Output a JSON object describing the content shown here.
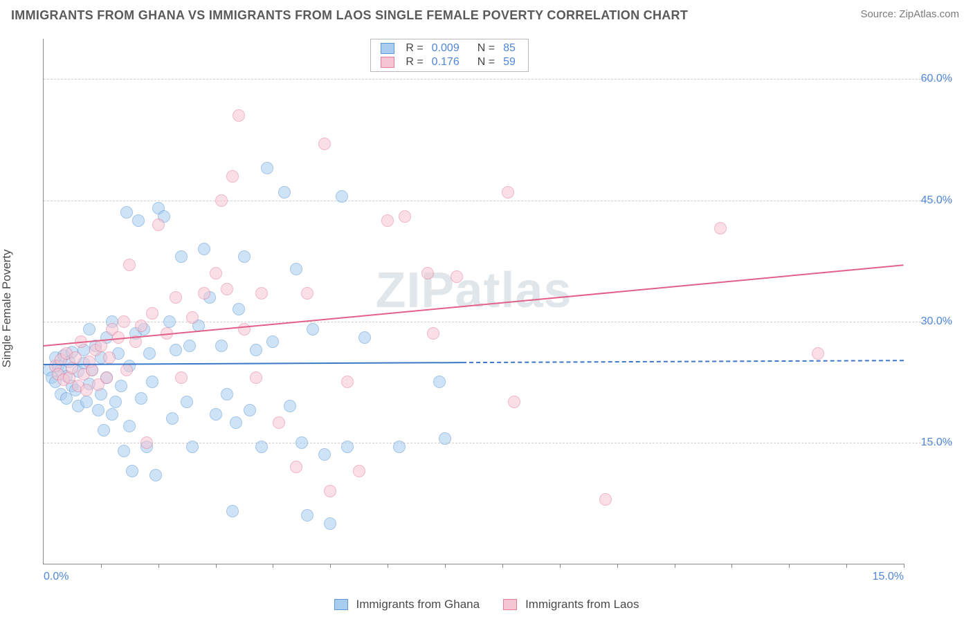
{
  "title": "IMMIGRANTS FROM GHANA VS IMMIGRANTS FROM LAOS SINGLE FEMALE POVERTY CORRELATION CHART",
  "source": "Source: ZipAtlas.com",
  "watermark": "ZIPatlas",
  "ylabel": "Single Female Poverty",
  "chart": {
    "type": "scatter",
    "xlim": [
      0,
      15
    ],
    "ylim": [
      0,
      65
    ],
    "xticks": [
      0.0,
      15.0
    ],
    "xtick_labels": [
      "0.0%",
      "15.0%"
    ],
    "yticks": [
      15.0,
      30.0,
      45.0,
      60.0
    ],
    "ytick_labels": [
      "15.0%",
      "30.0%",
      "45.0%",
      "60.0%"
    ],
    "grid_color": "#cfcfcf",
    "axis_color": "#888888",
    "tick_label_color": "#4f86d8",
    "background_color": "#ffffff",
    "point_radius": 9,
    "point_opacity": 0.55,
    "trend_line_width": 2.4,
    "x_minor_tick_count": 15
  },
  "series": [
    {
      "name": "Immigrants from Ghana",
      "fill": "#a9cdf0",
      "stroke": "#5a97d6",
      "line_color": "#3b78c7",
      "r_label": "R =",
      "r_value": "0.009",
      "n_label": "N =",
      "n_value": "85",
      "trend": {
        "y_at_x0": 24.7,
        "y_at_xmax": 25.2,
        "solid_until_x": 7.3
      },
      "points": [
        [
          0.1,
          24.0
        ],
        [
          0.15,
          23.0
        ],
        [
          0.2,
          25.5
        ],
        [
          0.2,
          22.5
        ],
        [
          0.25,
          24.5
        ],
        [
          0.3,
          24.0
        ],
        [
          0.3,
          21.0
        ],
        [
          0.35,
          25.8
        ],
        [
          0.4,
          23.2
        ],
        [
          0.4,
          20.5
        ],
        [
          0.45,
          25.0
        ],
        [
          0.5,
          22.0
        ],
        [
          0.5,
          26.2
        ],
        [
          0.55,
          21.5
        ],
        [
          0.6,
          23.8
        ],
        [
          0.6,
          19.5
        ],
        [
          0.7,
          24.8
        ],
        [
          0.7,
          26.5
        ],
        [
          0.75,
          20.0
        ],
        [
          0.8,
          29.0
        ],
        [
          0.8,
          22.3
        ],
        [
          0.85,
          24.0
        ],
        [
          0.9,
          27.0
        ],
        [
          0.95,
          19.0
        ],
        [
          1.0,
          25.5
        ],
        [
          1.0,
          21.0
        ],
        [
          1.05,
          16.5
        ],
        [
          1.1,
          28.0
        ],
        [
          1.1,
          23.0
        ],
        [
          1.2,
          18.5
        ],
        [
          1.2,
          30.0
        ],
        [
          1.25,
          20.0
        ],
        [
          1.3,
          26.0
        ],
        [
          1.35,
          22.0
        ],
        [
          1.4,
          14.0
        ],
        [
          1.45,
          43.5
        ],
        [
          1.5,
          24.5
        ],
        [
          1.5,
          17.0
        ],
        [
          1.55,
          11.5
        ],
        [
          1.6,
          28.5
        ],
        [
          1.65,
          42.5
        ],
        [
          1.7,
          20.5
        ],
        [
          1.75,
          29.0
        ],
        [
          1.8,
          14.5
        ],
        [
          1.85,
          26.0
        ],
        [
          1.9,
          22.5
        ],
        [
          1.95,
          11.0
        ],
        [
          2.0,
          44.0
        ],
        [
          2.1,
          43.0
        ],
        [
          2.2,
          30.0
        ],
        [
          2.25,
          18.0
        ],
        [
          2.3,
          26.5
        ],
        [
          2.4,
          38.0
        ],
        [
          2.5,
          20.0
        ],
        [
          2.55,
          27.0
        ],
        [
          2.6,
          14.5
        ],
        [
          2.7,
          29.5
        ],
        [
          2.8,
          39.0
        ],
        [
          2.9,
          33.0
        ],
        [
          3.0,
          18.5
        ],
        [
          3.1,
          27.0
        ],
        [
          3.2,
          21.0
        ],
        [
          3.3,
          6.5
        ],
        [
          3.35,
          17.5
        ],
        [
          3.4,
          31.5
        ],
        [
          3.5,
          38.0
        ],
        [
          3.6,
          19.0
        ],
        [
          3.7,
          26.5
        ],
        [
          3.8,
          14.5
        ],
        [
          3.9,
          49.0
        ],
        [
          4.0,
          27.5
        ],
        [
          4.2,
          46.0
        ],
        [
          4.3,
          19.5
        ],
        [
          4.4,
          36.5
        ],
        [
          4.5,
          15.0
        ],
        [
          4.6,
          6.0
        ],
        [
          4.7,
          29.0
        ],
        [
          4.9,
          13.5
        ],
        [
          5.0,
          5.0
        ],
        [
          5.2,
          45.5
        ],
        [
          5.3,
          14.5
        ],
        [
          5.6,
          28.0
        ],
        [
          6.2,
          14.5
        ],
        [
          6.9,
          22.5
        ],
        [
          7.0,
          15.5
        ]
      ]
    },
    {
      "name": "Immigrants from Laos",
      "fill": "#f6c6d3",
      "stroke": "#e77c9a",
      "line_color": "#e26088",
      "r_label": "R =",
      "r_value": "0.176",
      "n_label": "N =",
      "n_value": "59",
      "trend": {
        "y_at_x0": 27.0,
        "y_at_xmax": 37.0,
        "solid_until_x": 15
      },
      "points": [
        [
          0.2,
          24.5
        ],
        [
          0.25,
          23.5
        ],
        [
          0.3,
          25.3
        ],
        [
          0.35,
          22.8
        ],
        [
          0.4,
          26.0
        ],
        [
          0.45,
          23.0
        ],
        [
          0.5,
          24.2
        ],
        [
          0.55,
          25.5
        ],
        [
          0.6,
          22.0
        ],
        [
          0.65,
          27.5
        ],
        [
          0.7,
          23.5
        ],
        [
          0.75,
          21.5
        ],
        [
          0.8,
          25.0
        ],
        [
          0.85,
          24.0
        ],
        [
          0.9,
          26.5
        ],
        [
          0.95,
          22.2
        ],
        [
          1.0,
          27.0
        ],
        [
          1.1,
          23.0
        ],
        [
          1.15,
          25.5
        ],
        [
          1.2,
          29.0
        ],
        [
          1.3,
          28.0
        ],
        [
          1.4,
          30.0
        ],
        [
          1.45,
          24.0
        ],
        [
          1.5,
          37.0
        ],
        [
          1.6,
          27.5
        ],
        [
          1.7,
          29.5
        ],
        [
          1.8,
          15.0
        ],
        [
          1.9,
          31.0
        ],
        [
          2.0,
          42.0
        ],
        [
          2.15,
          28.5
        ],
        [
          2.3,
          33.0
        ],
        [
          2.4,
          23.0
        ],
        [
          2.6,
          30.5
        ],
        [
          2.8,
          33.5
        ],
        [
          3.0,
          36.0
        ],
        [
          3.1,
          45.0
        ],
        [
          3.2,
          34.0
        ],
        [
          3.3,
          48.0
        ],
        [
          3.4,
          55.5
        ],
        [
          3.5,
          29.0
        ],
        [
          3.7,
          23.0
        ],
        [
          3.8,
          33.5
        ],
        [
          4.1,
          17.5
        ],
        [
          4.4,
          12.0
        ],
        [
          4.6,
          33.5
        ],
        [
          4.9,
          52.0
        ],
        [
          5.0,
          9.0
        ],
        [
          5.3,
          22.5
        ],
        [
          5.5,
          11.5
        ],
        [
          6.0,
          42.5
        ],
        [
          6.3,
          43.0
        ],
        [
          6.7,
          36.0
        ],
        [
          6.8,
          28.5
        ],
        [
          7.2,
          35.5
        ],
        [
          8.1,
          46.0
        ],
        [
          8.2,
          20.0
        ],
        [
          9.8,
          8.0
        ],
        [
          11.8,
          41.5
        ],
        [
          13.5,
          26.0
        ]
      ]
    }
  ],
  "legend_bottom": [
    {
      "label": "Immigrants from Ghana",
      "fill": "#a9cdf0",
      "stroke": "#5a97d6"
    },
    {
      "label": "Immigrants from Laos",
      "fill": "#f6c6d3",
      "stroke": "#e77c9a"
    }
  ]
}
